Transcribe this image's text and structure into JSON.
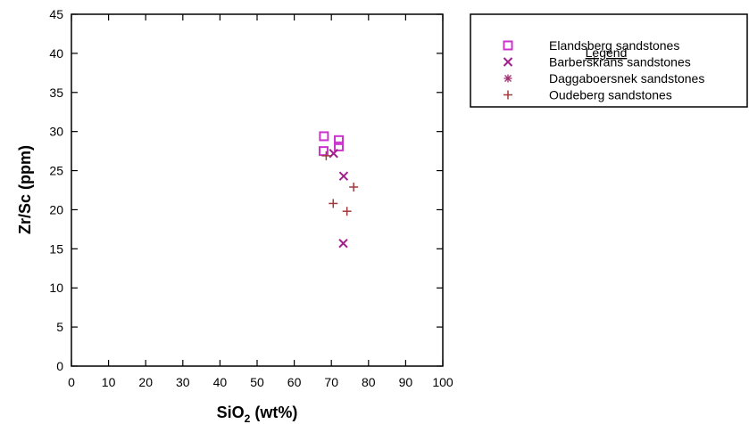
{
  "chart_data": {
    "type": "scatter",
    "title": "",
    "xlabel": "SiO",
    "xlabel_subscript": "2",
    "xlabel_unit": " (wt%)",
    "ylabel": "Zr/Sc (ppm)",
    "xlim": [
      0,
      100
    ],
    "ylim": [
      0,
      45
    ],
    "xticks": [
      "0",
      "10",
      "20",
      "30",
      "40",
      "50",
      "60",
      "70",
      "80",
      "90",
      "100"
    ],
    "yticks": [
      "0",
      "5",
      "10",
      "15",
      "20",
      "25",
      "30",
      "35",
      "40",
      "45"
    ],
    "grid": false,
    "legend": {
      "title": "Legend",
      "placement": "right, outside plot"
    },
    "series": [
      {
        "name": "Elandsberg sandstones",
        "marker": "square",
        "color": "#cc33cc",
        "points": [
          [
            68.0,
            29.4
          ],
          [
            72.0,
            28.9
          ],
          [
            72.0,
            28.1
          ],
          [
            67.9,
            27.5
          ]
        ]
      },
      {
        "name": "Barberskrans sandstones",
        "marker": "x",
        "color": "#a0208c",
        "points": [
          [
            70.6,
            27.2
          ],
          [
            73.3,
            24.3
          ],
          [
            73.2,
            15.7
          ]
        ]
      },
      {
        "name": "Daggaboersnek sandstones",
        "marker": "asterisk",
        "color": "#a0306e",
        "points": []
      },
      {
        "name": "Oudeberg sandstones",
        "marker": "plus",
        "color": "#a03a3a",
        "points": [
          [
            68.6,
            26.9
          ],
          [
            76.0,
            22.9
          ],
          [
            70.5,
            20.8
          ],
          [
            74.2,
            19.8
          ]
        ]
      }
    ]
  }
}
